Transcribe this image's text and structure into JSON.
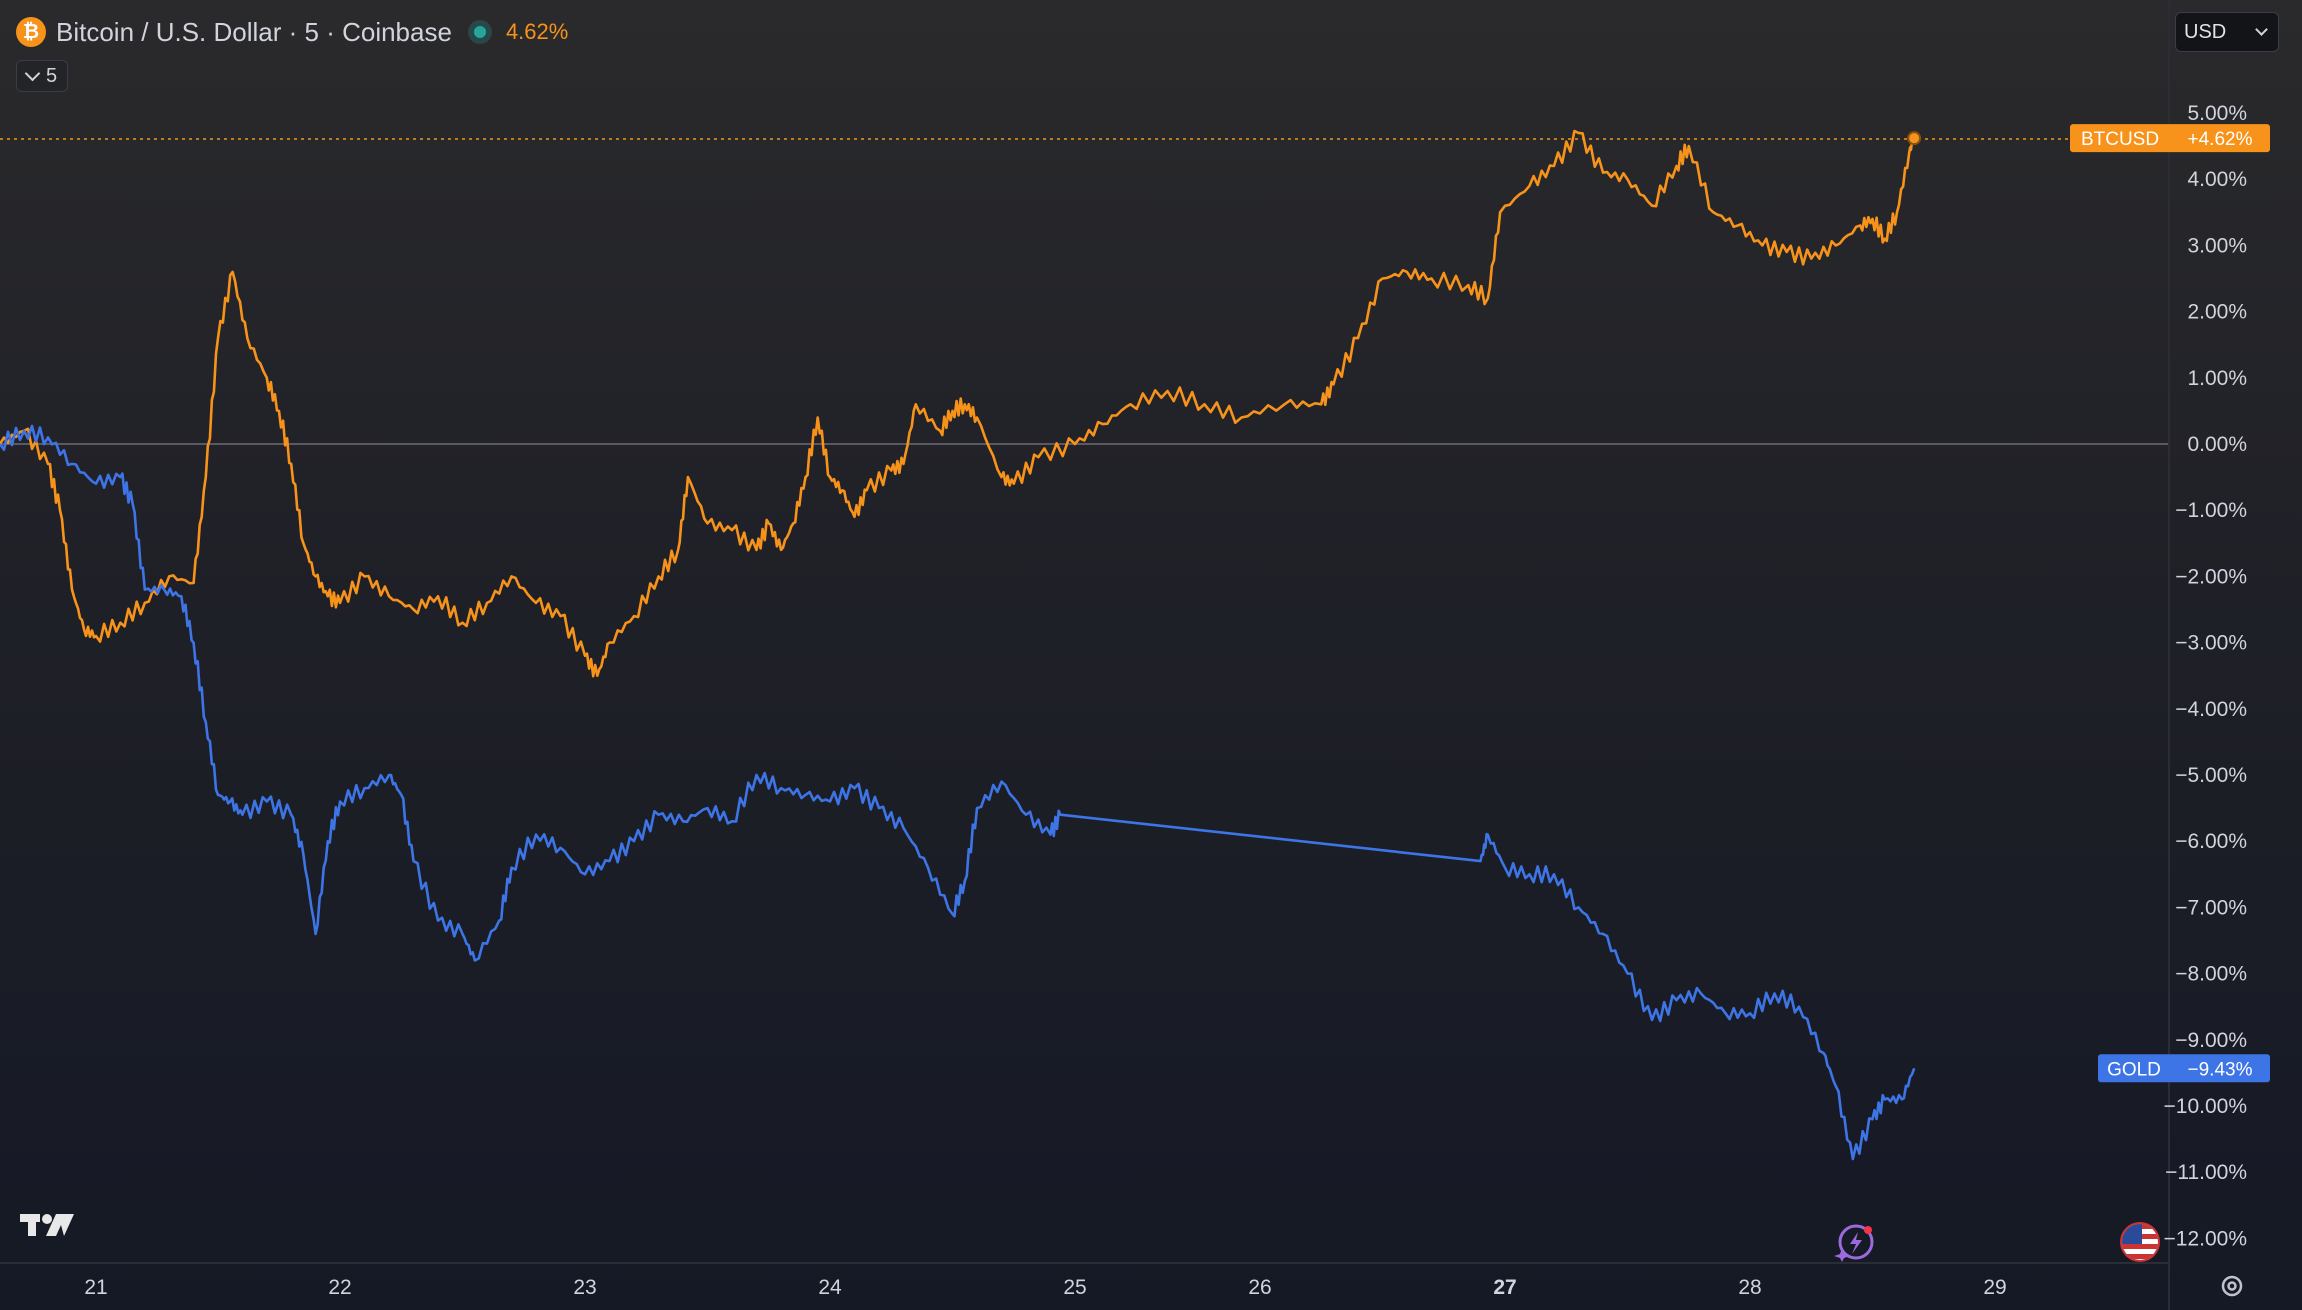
{
  "header": {
    "symbol_icon": "bitcoin-icon",
    "title": "Bitcoin / U.S. Dollar · 5 · Coinbase",
    "change": "4.62%",
    "interval": "5"
  },
  "currency_selector": {
    "value": "USD"
  },
  "colors": {
    "btc": "#f7931a",
    "gold": "#3d74e6",
    "axis_text": "#d1d4dc",
    "zero_line": "#6a6d78"
  },
  "chart_data": {
    "type": "line",
    "title": "",
    "xlabel": "",
    "ylabel": "",
    "x_ticks": [
      "21",
      "22",
      "23",
      "24",
      "25",
      "26",
      "27",
      "28",
      "29"
    ],
    "x_tick_bold": "27",
    "y_ticks": [
      "5.00%",
      "4.00%",
      "3.00%",
      "2.00%",
      "1.00%",
      "0.00%",
      "−1.00%",
      "−2.00%",
      "−3.00%",
      "−4.00%",
      "−5.00%",
      "−6.00%",
      "−7.00%",
      "−8.00%",
      "−9.00%",
      "−10.00%",
      "−11.00%",
      "−12.00%"
    ],
    "ylim": [
      -12.6,
      5.6
    ],
    "grid": false,
    "series": [
      {
        "name": "BTCUSD",
        "last_label": "+4.62%",
        "points": [
          [
            20.6,
            0.0
          ],
          [
            20.7,
            0.2
          ],
          [
            20.8,
            -0.3
          ],
          [
            20.85,
            -1.0
          ],
          [
            20.9,
            -2.2
          ],
          [
            20.95,
            -2.8
          ],
          [
            21.0,
            -2.9
          ],
          [
            21.1,
            -2.7
          ],
          [
            21.2,
            -2.4
          ],
          [
            21.3,
            -2.0
          ],
          [
            21.4,
            -2.1
          ],
          [
            21.45,
            -0.5
          ],
          [
            21.5,
            1.6
          ],
          [
            21.56,
            2.6
          ],
          [
            21.62,
            1.6
          ],
          [
            21.7,
            1.0
          ],
          [
            21.75,
            0.5
          ],
          [
            21.8,
            -0.3
          ],
          [
            21.85,
            -1.5
          ],
          [
            21.9,
            -2.0
          ],
          [
            21.95,
            -2.3
          ],
          [
            22.0,
            -2.4
          ],
          [
            22.1,
            -2.0
          ],
          [
            22.2,
            -2.3
          ],
          [
            22.3,
            -2.5
          ],
          [
            22.4,
            -2.3
          ],
          [
            22.5,
            -2.7
          ],
          [
            22.6,
            -2.4
          ],
          [
            22.7,
            -2.0
          ],
          [
            22.8,
            -2.4
          ],
          [
            22.9,
            -2.6
          ],
          [
            23.0,
            -3.2
          ],
          [
            23.05,
            -3.5
          ],
          [
            23.1,
            -3.0
          ],
          [
            23.2,
            -2.6
          ],
          [
            23.3,
            -2.0
          ],
          [
            23.38,
            -1.6
          ],
          [
            23.42,
            -0.5
          ],
          [
            23.5,
            -1.2
          ],
          [
            23.6,
            -1.3
          ],
          [
            23.7,
            -1.6
          ],
          [
            23.75,
            -1.2
          ],
          [
            23.8,
            -1.6
          ],
          [
            23.85,
            -1.2
          ],
          [
            23.9,
            -0.5
          ],
          [
            23.95,
            0.4
          ],
          [
            24.0,
            -0.5
          ],
          [
            24.05,
            -0.7
          ],
          [
            24.1,
            -1.1
          ],
          [
            24.15,
            -0.7
          ],
          [
            24.25,
            -0.4
          ],
          [
            24.3,
            -0.3
          ],
          [
            24.35,
            0.6
          ],
          [
            24.45,
            0.2
          ],
          [
            24.5,
            0.5
          ],
          [
            24.55,
            0.6
          ],
          [
            24.6,
            0.4
          ],
          [
            24.7,
            -0.5
          ],
          [
            24.75,
            -0.6
          ],
          [
            24.85,
            -0.2
          ],
          [
            25.0,
            0.0
          ],
          [
            25.15,
            0.3
          ],
          [
            25.3,
            0.6
          ],
          [
            25.5,
            0.8
          ],
          [
            25.7,
            0.6
          ],
          [
            25.9,
            0.4
          ],
          [
            26.1,
            0.6
          ],
          [
            26.25,
            0.6
          ],
          [
            26.3,
            0.9
          ],
          [
            26.4,
            1.6
          ],
          [
            26.5,
            2.5
          ],
          [
            26.6,
            2.6
          ],
          [
            26.7,
            2.5
          ],
          [
            26.85,
            2.4
          ],
          [
            26.93,
            2.2
          ],
          [
            26.98,
            3.5
          ],
          [
            27.1,
            3.9
          ],
          [
            27.2,
            4.2
          ],
          [
            27.3,
            4.7
          ],
          [
            27.4,
            4.1
          ],
          [
            27.5,
            4.0
          ],
          [
            27.6,
            3.6
          ],
          [
            27.7,
            4.2
          ],
          [
            27.75,
            4.5
          ],
          [
            27.85,
            3.5
          ],
          [
            27.95,
            3.3
          ],
          [
            28.05,
            3.0
          ],
          [
            28.15,
            2.9
          ],
          [
            28.25,
            2.8
          ],
          [
            28.35,
            3.0
          ],
          [
            28.45,
            3.3
          ],
          [
            28.5,
            3.4
          ],
          [
            28.55,
            3.1
          ],
          [
            28.6,
            3.5
          ],
          [
            28.65,
            4.4
          ],
          [
            28.67,
            4.62
          ]
        ]
      },
      {
        "name": "GOLD",
        "last_label": "−9.43%",
        "points": [
          [
            20.6,
            0.0
          ],
          [
            20.7,
            0.2
          ],
          [
            20.8,
            0.1
          ],
          [
            20.9,
            -0.3
          ],
          [
            21.0,
            -0.6
          ],
          [
            21.1,
            -0.5
          ],
          [
            21.15,
            -0.9
          ],
          [
            21.2,
            -2.2
          ],
          [
            21.28,
            -2.2
          ],
          [
            21.35,
            -2.3
          ],
          [
            21.4,
            -3.0
          ],
          [
            21.45,
            -4.2
          ],
          [
            21.5,
            -5.3
          ],
          [
            21.55,
            -5.4
          ],
          [
            21.6,
            -5.6
          ],
          [
            21.7,
            -5.4
          ],
          [
            21.8,
            -5.6
          ],
          [
            21.85,
            -6.2
          ],
          [
            21.9,
            -7.4
          ],
          [
            21.95,
            -6.0
          ],
          [
            22.0,
            -5.4
          ],
          [
            22.1,
            -5.2
          ],
          [
            22.2,
            -5.0
          ],
          [
            22.25,
            -5.3
          ],
          [
            22.3,
            -6.3
          ],
          [
            22.4,
            -7.2
          ],
          [
            22.5,
            -7.4
          ],
          [
            22.55,
            -7.8
          ],
          [
            22.65,
            -7.2
          ],
          [
            22.7,
            -6.4
          ],
          [
            22.8,
            -5.9
          ],
          [
            22.9,
            -6.1
          ],
          [
            23.0,
            -6.5
          ],
          [
            23.1,
            -6.3
          ],
          [
            23.2,
            -6.0
          ],
          [
            23.3,
            -5.6
          ],
          [
            23.4,
            -5.7
          ],
          [
            23.5,
            -5.5
          ],
          [
            23.6,
            -5.7
          ],
          [
            23.7,
            -5.0
          ],
          [
            23.8,
            -5.2
          ],
          [
            23.9,
            -5.3
          ],
          [
            24.0,
            -5.4
          ],
          [
            24.1,
            -5.2
          ],
          [
            24.2,
            -5.5
          ],
          [
            24.3,
            -5.8
          ],
          [
            24.4,
            -6.4
          ],
          [
            24.5,
            -7.1
          ],
          [
            24.55,
            -6.6
          ],
          [
            24.6,
            -5.5
          ],
          [
            24.7,
            -5.1
          ],
          [
            24.8,
            -5.6
          ],
          [
            24.9,
            -5.9
          ],
          [
            24.94,
            -5.6
          ],
          [
            26.9,
            -6.3
          ],
          [
            26.93,
            -5.9
          ],
          [
            27.0,
            -6.4
          ],
          [
            27.1,
            -6.5
          ],
          [
            27.2,
            -6.5
          ],
          [
            27.3,
            -7.0
          ],
          [
            27.4,
            -7.4
          ],
          [
            27.5,
            -8.0
          ],
          [
            27.6,
            -8.7
          ],
          [
            27.7,
            -8.4
          ],
          [
            27.8,
            -8.3
          ],
          [
            27.9,
            -8.6
          ],
          [
            28.0,
            -8.6
          ],
          [
            28.1,
            -8.3
          ],
          [
            28.2,
            -8.5
          ],
          [
            28.3,
            -9.2
          ],
          [
            28.35,
            -9.7
          ],
          [
            28.42,
            -10.8
          ],
          [
            28.5,
            -10.2
          ],
          [
            28.55,
            -9.9
          ],
          [
            28.62,
            -9.9
          ],
          [
            28.67,
            -9.43
          ]
        ]
      }
    ]
  }
}
